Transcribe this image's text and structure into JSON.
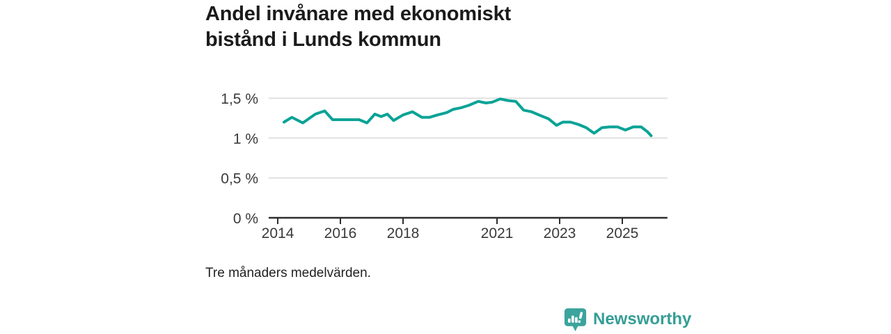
{
  "page": {
    "background": "#ffffff"
  },
  "header": {
    "title_lines": [
      "Andel invånare med ekonomiskt",
      "bistånd i Lunds kommun"
    ]
  },
  "footnote": {
    "text": "Tre månaders medelvärden."
  },
  "branding": {
    "logo_text": "Newsworthy",
    "logo_color": "#359e96",
    "logo_mark": "speech-bubble-bar-chart-icon"
  },
  "colors": {
    "line": "#09a396",
    "grid": "#d9d9d9",
    "axis": "#2e2e2e",
    "tick_text": "#3a3a3a",
    "title_text": "#1b1b1b"
  },
  "chart_data": {
    "type": "line",
    "title": "Andel invånare med ekonomiskt bistånd i Lunds kommun",
    "note": "Tre månaders medelvärden.",
    "unit": "%",
    "xlabel": "",
    "ylabel": "",
    "ylim": [
      0,
      1.5
    ],
    "xlim": [
      2013.71,
      2026.44
    ],
    "grid": "horizontal",
    "legend": "none",
    "y_ticks": [
      {
        "value": 1.5,
        "label": "1,5 %"
      },
      {
        "value": 1.0,
        "label": "1 %"
      },
      {
        "value": 0.5,
        "label": "0,5 %"
      },
      {
        "value": 0,
        "label": "0 %"
      }
    ],
    "x_ticks": [
      {
        "value": 2014,
        "label": "2014"
      },
      {
        "value": 2016,
        "label": "2016"
      },
      {
        "value": 2018,
        "label": "2018"
      },
      {
        "value": 2021,
        "label": "2021"
      },
      {
        "value": 2023,
        "label": "2023"
      },
      {
        "value": 2025,
        "label": "2025"
      }
    ],
    "series": [
      {
        "name": "Andel invånare med ekonomiskt bistånd (%)",
        "x": [
          2014.2,
          2014.45,
          2014.8,
          2015.2,
          2015.5,
          2015.75,
          2016.0,
          2016.3,
          2016.6,
          2016.85,
          2017.1,
          2017.3,
          2017.5,
          2017.7,
          2018.0,
          2018.3,
          2018.6,
          2018.85,
          2019.1,
          2019.4,
          2019.6,
          2019.85,
          2020.1,
          2020.4,
          2020.65,
          2020.85,
          2021.1,
          2021.35,
          2021.6,
          2021.85,
          2022.1,
          2022.4,
          2022.65,
          2022.9,
          2023.1,
          2023.35,
          2023.6,
          2023.85,
          2024.1,
          2024.35,
          2024.6,
          2024.85,
          2025.1,
          2025.35,
          2025.6,
          2025.8,
          2025.92
        ],
        "values": [
          1.2,
          1.26,
          1.19,
          1.3,
          1.34,
          1.23,
          1.23,
          1.23,
          1.23,
          1.19,
          1.3,
          1.27,
          1.3,
          1.22,
          1.29,
          1.33,
          1.26,
          1.26,
          1.29,
          1.32,
          1.36,
          1.38,
          1.41,
          1.46,
          1.44,
          1.45,
          1.49,
          1.47,
          1.46,
          1.35,
          1.33,
          1.28,
          1.24,
          1.16,
          1.2,
          1.2,
          1.17,
          1.13,
          1.06,
          1.13,
          1.14,
          1.14,
          1.1,
          1.14,
          1.14,
          1.08,
          1.03
        ]
      }
    ]
  }
}
